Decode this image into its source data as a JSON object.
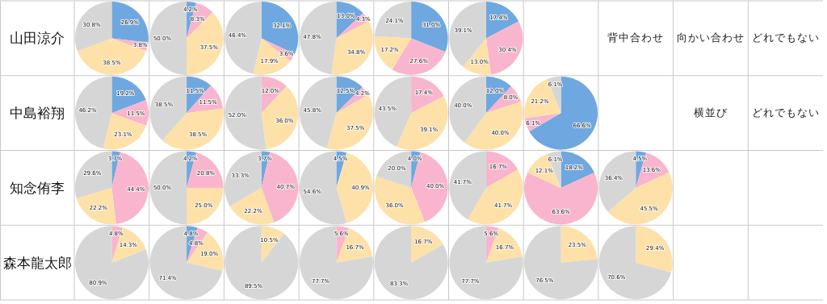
{
  "chart_data": [
    {
      "type": "other",
      "title": "山田涼介"
    },
    {
      "type": "pie",
      "categories": [
        null,
        null,
        null,
        null
      ],
      "values": [
        26.9,
        3.8,
        38.5,
        30.8
      ],
      "value_labels": [
        "26.9%",
        "3.8%",
        "38.5%",
        "30.8%"
      ],
      "colors": [
        "#6fa8e0",
        "#f9b5cd",
        "#fde1a8",
        "#d6d6d6"
      ]
    },
    {
      "type": "pie",
      "categories": [
        null,
        null,
        null,
        null
      ],
      "values": [
        4.2,
        8.3,
        37.5,
        50.0
      ],
      "value_labels": [
        "4.2%",
        "8.3%",
        "37.5%",
        "50.0%"
      ],
      "colors": [
        "#6fa8e0",
        "#f9b5cd",
        "#fde1a8",
        "#d6d6d6"
      ]
    },
    {
      "type": "pie",
      "categories": [
        null,
        null,
        null,
        null
      ],
      "values": [
        32.1,
        3.6,
        17.9,
        46.4
      ],
      "value_labels": [
        "32.1%",
        "3.6%",
        "17.9%",
        "46.4%"
      ],
      "colors": [
        "#6fa8e0",
        "#f9b5cd",
        "#fde1a8",
        "#d6d6d6"
      ]
    },
    {
      "type": "pie",
      "categories": [
        null,
        null,
        null,
        null
      ],
      "values": [
        13.0,
        4.3,
        34.8,
        47.8
      ],
      "value_labels": [
        "13.0%",
        "4.3%",
        "34.8%",
        "47.8%"
      ],
      "colors": [
        "#6fa8e0",
        "#f9b5cd",
        "#fde1a8",
        "#d6d6d6"
      ]
    },
    {
      "type": "pie",
      "categories": [
        null,
        null,
        null,
        null
      ],
      "values": [
        31.0,
        27.6,
        17.2,
        24.1
      ],
      "value_labels": [
        "31.0%",
        "27.6%",
        "17.2%",
        "24.1%"
      ],
      "colors": [
        "#6fa8e0",
        "#f9b5cd",
        "#fde1a8",
        "#d6d6d6"
      ]
    },
    {
      "type": "pie",
      "categories": [
        null,
        null,
        null,
        null
      ],
      "values": [
        17.4,
        30.4,
        13.0,
        39.1
      ],
      "value_labels": [
        "17.4%",
        "30.4%",
        "13.0%",
        "39.1%"
      ],
      "colors": [
        "#6fa8e0",
        "#f9b5cd",
        "#fde1a8",
        "#d6d6d6"
      ]
    },
    {
      "type": "other",
      "annotations": [
        "背中合わせ"
      ]
    },
    {
      "type": "other",
      "annotations": [
        "向かい合わせ"
      ]
    },
    {
      "type": "other",
      "annotations": [
        "どれでもない"
      ]
    },
    {
      "type": "other",
      "title": "中島裕翔"
    },
    {
      "type": "pie",
      "categories": [
        null,
        null,
        null,
        null
      ],
      "values": [
        19.2,
        11.5,
        23.1,
        46.2
      ],
      "value_labels": [
        "19.2%",
        "11.5%",
        "23.1%",
        "46.2%"
      ],
      "colors": [
        "#6fa8e0",
        "#f9b5cd",
        "#fde1a8",
        "#d6d6d6"
      ]
    },
    {
      "type": "pie",
      "categories": [
        null,
        null,
        null,
        null
      ],
      "values": [
        11.5,
        11.5,
        38.5,
        38.5
      ],
      "value_labels": [
        "11.5%",
        "11.5%",
        "38.5%",
        "38.5%"
      ],
      "colors": [
        "#6fa8e0",
        "#f9b5cd",
        "#fde1a8",
        "#d6d6d6"
      ]
    },
    {
      "type": "pie",
      "categories": [
        null,
        null,
        null
      ],
      "values": [
        12.0,
        36.0,
        52.0
      ],
      "value_labels": [
        "12.0%",
        "36.0%",
        "52.0%"
      ],
      "colors": [
        "#f9b5cd",
        "#fde1a8",
        "#d6d6d6"
      ]
    },
    {
      "type": "pie",
      "categories": [
        null,
        null,
        null,
        null
      ],
      "values": [
        12.5,
        4.2,
        37.5,
        45.8
      ],
      "value_labels": [
        "12.5%",
        "4.2%",
        "37.5%",
        "45.8%"
      ],
      "colors": [
        "#6fa8e0",
        "#f9b5cd",
        "#fde1a8",
        "#d6d6d6"
      ]
    },
    {
      "type": "pie",
      "categories": [
        null,
        null,
        null
      ],
      "values": [
        17.4,
        39.1,
        43.5
      ],
      "value_labels": [
        "17.4%",
        "39.1%",
        "43.5%"
      ],
      "colors": [
        "#f9b5cd",
        "#fde1a8",
        "#d6d6d6"
      ]
    },
    {
      "type": "pie",
      "categories": [
        null,
        null,
        null,
        null
      ],
      "values": [
        12.0,
        8.0,
        40.0,
        40.0
      ],
      "value_labels": [
        "12.0%",
        "8.0%",
        "40.0%",
        "40.0%"
      ],
      "colors": [
        "#6fa8e0",
        "#f9b5cd",
        "#fde1a8",
        "#d6d6d6"
      ]
    },
    {
      "type": "pie",
      "categories": [
        null,
        null,
        null,
        null
      ],
      "values": [
        66.6,
        6.1,
        21.2,
        6.1
      ],
      "value_labels": [
        "66.6%",
        "6.1%",
        "21.2%",
        "6.1%"
      ],
      "colors": [
        "#6fa8e0",
        "#f9b5cd",
        "#fde1a8",
        "#d6d6d6"
      ]
    },
    {
      "type": "other",
      "annotations": [
        "横並び"
      ]
    },
    {
      "type": "other",
      "annotations": [
        "どれでもない"
      ]
    },
    {
      "type": "other",
      "title": "知念侑李"
    },
    {
      "type": "pie",
      "categories": [
        null,
        null,
        null,
        null
      ],
      "values": [
        3.7,
        44.4,
        22.2,
        29.6
      ],
      "value_labels": [
        "3.7%",
        "44.4%",
        "22.2%",
        "29.6%"
      ],
      "colors": [
        "#6fa8e0",
        "#f9b5cd",
        "#fde1a8",
        "#d6d6d6"
      ]
    },
    {
      "type": "pie",
      "categories": [
        null,
        null,
        null,
        null
      ],
      "values": [
        4.2,
        20.8,
        25.0,
        50.0
      ],
      "value_labels": [
        "4.2%",
        "20.8%",
        "25.0%",
        "50.0%"
      ],
      "colors": [
        "#6fa8e0",
        "#f9b5cd",
        "#fde1a8",
        "#d6d6d6"
      ]
    },
    {
      "type": "pie",
      "categories": [
        null,
        null,
        null,
        null
      ],
      "values": [
        3.7,
        40.7,
        22.2,
        33.3
      ],
      "value_labels": [
        "3.7%",
        "40.7%",
        "22.2%",
        "33.3%"
      ],
      "colors": [
        "#6fa8e0",
        "#f9b5cd",
        "#fde1a8",
        "#d6d6d6"
      ]
    },
    {
      "type": "pie",
      "categories": [
        null,
        null,
        null
      ],
      "values": [
        4.5,
        40.9,
        54.6
      ],
      "value_labels": [
        "4.5%",
        "40.9%",
        "54.6%"
      ],
      "colors": [
        "#6fa8e0",
        "#fde1a8",
        "#d6d6d6"
      ]
    },
    {
      "type": "pie",
      "categories": [
        null,
        null,
        null,
        null
      ],
      "values": [
        4.0,
        40.0,
        36.0,
        20.0
      ],
      "value_labels": [
        "4.0%",
        "40.0%",
        "36.0%",
        "20.0%"
      ],
      "colors": [
        "#6fa8e0",
        "#f9b5cd",
        "#fde1a8",
        "#d6d6d6"
      ]
    },
    {
      "type": "pie",
      "categories": [
        null,
        null,
        null
      ],
      "values": [
        16.7,
        41.7,
        41.7
      ],
      "value_labels": [
        "16.7%",
        "41.7%",
        "41.7%"
      ],
      "colors": [
        "#f9b5cd",
        "#fde1a8",
        "#d6d6d6"
      ]
    },
    {
      "type": "pie",
      "categories": [
        null,
        null,
        null,
        null
      ],
      "values": [
        18.2,
        63.6,
        12.1,
        6.1
      ],
      "value_labels": [
        "18.2%",
        "63.6%",
        "12.1%",
        "6.1%"
      ],
      "colors": [
        "#6fa8e0",
        "#f9b5cd",
        "#fde1a8",
        "#d6d6d6"
      ]
    },
    {
      "type": "pie",
      "categories": [
        null,
        null,
        null,
        null
      ],
      "values": [
        4.5,
        13.6,
        45.5,
        36.4
      ],
      "value_labels": [
        "4.5%",
        "13.6%",
        "45.5%",
        "36.4%"
      ],
      "colors": [
        "#6fa8e0",
        "#f9b5cd",
        "#fde1a8",
        "#d6d6d6"
      ]
    },
    {
      "type": "other",
      "title": "森本龍太郎"
    },
    {
      "type": "pie",
      "categories": [
        null,
        null,
        null
      ],
      "values": [
        4.8,
        14.3,
        80.9
      ],
      "value_labels": [
        "4.8%",
        "14.3%",
        "80.9%"
      ],
      "colors": [
        "#f9b5cd",
        "#fde1a8",
        "#d6d6d6"
      ]
    },
    {
      "type": "pie",
      "categories": [
        null,
        null,
        null,
        null
      ],
      "values": [
        4.8,
        4.8,
        19.0,
        71.4
      ],
      "value_labels": [
        "4.8%",
        "4.8%",
        "19.0%",
        "71.4%"
      ],
      "colors": [
        "#6fa8e0",
        "#f9b5cd",
        "#fde1a8",
        "#d6d6d6"
      ]
    },
    {
      "type": "pie",
      "categories": [
        null,
        null
      ],
      "values": [
        10.5,
        89.5
      ],
      "value_labels": [
        "10.5%",
        "89.5%"
      ],
      "colors": [
        "#fde1a8",
        "#d6d6d6"
      ]
    },
    {
      "type": "pie",
      "categories": [
        null,
        null,
        null
      ],
      "values": [
        5.6,
        16.7,
        77.7
      ],
      "value_labels": [
        "5.6%",
        "16.7%",
        "77.7%"
      ],
      "colors": [
        "#f9b5cd",
        "#fde1a8",
        "#d6d6d6"
      ]
    },
    {
      "type": "pie",
      "categories": [
        null,
        null
      ],
      "values": [
        16.7,
        83.3
      ],
      "value_labels": [
        "16.7%",
        "83.3%"
      ],
      "colors": [
        "#fde1a8",
        "#d6d6d6"
      ]
    },
    {
      "type": "pie",
      "categories": [
        null,
        null,
        null
      ],
      "values": [
        5.6,
        16.7,
        77.7
      ],
      "value_labels": [
        "5.6%",
        "16.7%",
        "77.7%"
      ],
      "colors": [
        "#f9b5cd",
        "#fde1a8",
        "#d6d6d6"
      ]
    },
    {
      "type": "pie",
      "categories": [
        null,
        null
      ],
      "values": [
        23.5,
        76.5
      ],
      "value_labels": [
        "23.5%",
        "76.5%"
      ],
      "colors": [
        "#fde1a8",
        "#d6d6d6"
      ]
    },
    {
      "type": "pie",
      "categories": [
        null,
        null
      ],
      "values": [
        29.4,
        70.6
      ],
      "value_labels": [
        "29.4%",
        "70.6%"
      ],
      "colors": [
        "#fde1a8",
        "#d6d6d6"
      ]
    }
  ]
}
